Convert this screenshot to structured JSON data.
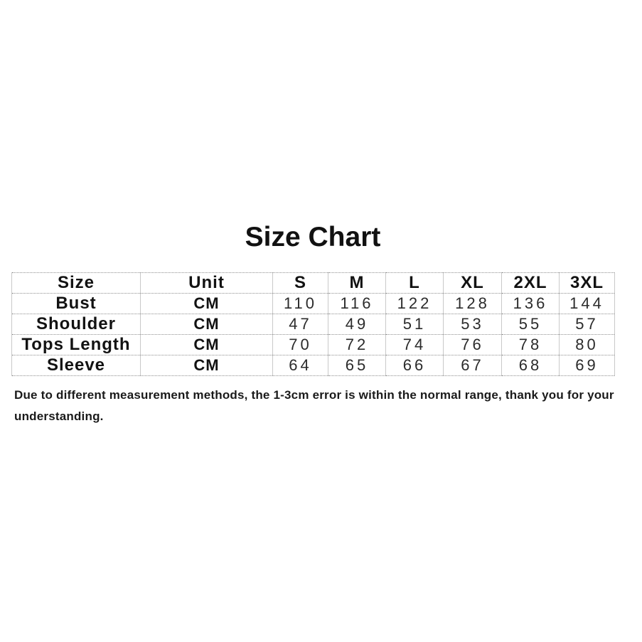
{
  "title": "Size Chart",
  "note": "Due to different measurement methods, the 1-3cm error is within the normal range, thank you for your understanding.",
  "colors": {
    "background": "#ffffff",
    "text": "#1a1a1a",
    "horizontal_border": "#8f8f8f",
    "vertical_border": "#c9c9c9"
  },
  "chart_data": {
    "type": "table",
    "title": "Size Chart",
    "headers": [
      "Size",
      "Unit",
      "S",
      "M",
      "L",
      "XL",
      "2XL",
      "3XL"
    ],
    "rows": [
      {
        "label": "Bust",
        "unit": "CM",
        "values": [
          110,
          116,
          122,
          128,
          136,
          144
        ]
      },
      {
        "label": "Shoulder",
        "unit": "CM",
        "values": [
          47,
          49,
          51,
          53,
          55,
          57
        ]
      },
      {
        "label": "Tops Length",
        "unit": "CM",
        "values": [
          70,
          72,
          74,
          76,
          78,
          80
        ]
      },
      {
        "label": "Sleeve",
        "unit": "CM",
        "values": [
          64,
          65,
          66,
          67,
          68,
          69
        ]
      }
    ],
    "layout": {
      "grid": "dotted horizontal rules, light vertical rules",
      "header_position": "top row",
      "units_column": true
    }
  }
}
